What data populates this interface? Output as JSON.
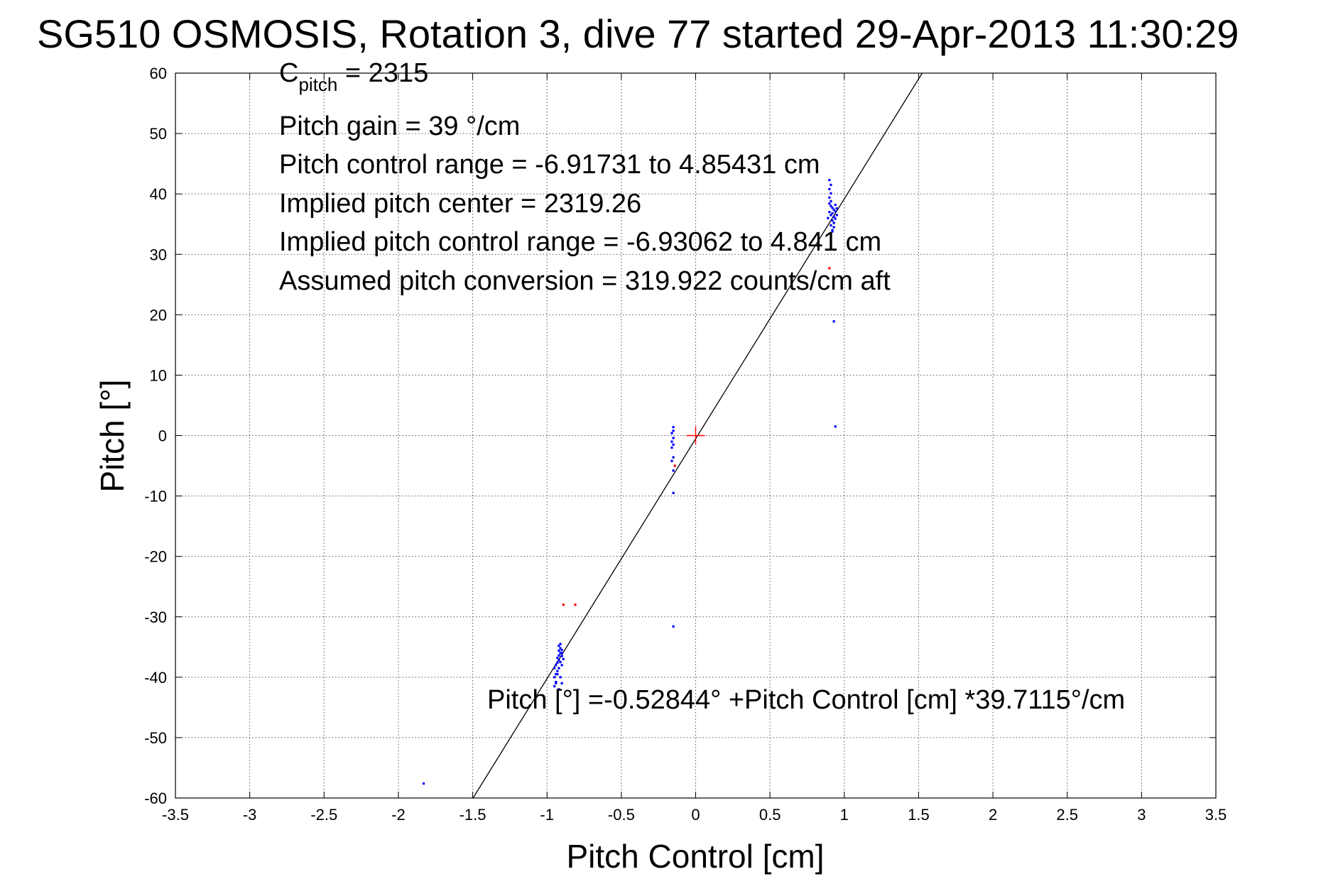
{
  "chart_data": {
    "type": "scatter",
    "title": "SG510 OSMOSIS, Rotation 3, dive 77 started 29-Apr-2013 11:30:29",
    "xlabel": "Pitch Control [cm]",
    "ylabel": "Pitch [°]",
    "xlim": [
      -3.5,
      3.5
    ],
    "ylim": [
      -60,
      60
    ],
    "xticks": [
      -3.5,
      -3,
      -2.5,
      -2,
      -1.5,
      -1,
      -0.5,
      0,
      0.5,
      1,
      1.5,
      2,
      2.5,
      3,
      3.5
    ],
    "xtick_labels": [
      "-3.5",
      "-3",
      "-2.5",
      "-2",
      "-1.5",
      "-1",
      "-0.5",
      "0",
      "0.5",
      "1",
      "1.5",
      "2",
      "2.5",
      "3",
      "3.5"
    ],
    "yticks": [
      -60,
      -50,
      -40,
      -30,
      -20,
      -10,
      0,
      10,
      20,
      30,
      40,
      50,
      60
    ],
    "ytick_labels": [
      "-60",
      "-50",
      "-40",
      "-30",
      "-20",
      "-10",
      "0",
      "10",
      "20",
      "30",
      "40",
      "50",
      "60"
    ],
    "grid": true,
    "fit_line": {
      "intercept": -0.52844,
      "slope": 39.7115,
      "color": "#000000"
    },
    "center_marker": {
      "x": 0,
      "y": 0,
      "color": "#ff0000"
    },
    "series": [
      {
        "color": "#0000ff",
        "points": [
          [
            -1.83,
            -57.6
          ],
          [
            -0.95,
            -41.5
          ],
          [
            -0.94,
            -40.8
          ],
          [
            -0.95,
            -40.0
          ],
          [
            -0.94,
            -39.5
          ],
          [
            -0.93,
            -39.0
          ],
          [
            -0.95,
            -38.5
          ],
          [
            -0.94,
            -38.0
          ],
          [
            -0.93,
            -37.6
          ],
          [
            -0.92,
            -37.2
          ],
          [
            -0.93,
            -36.8
          ],
          [
            -0.92,
            -36.4
          ],
          [
            -0.91,
            -36.0
          ],
          [
            -0.92,
            -35.6
          ],
          [
            -0.91,
            -35.2
          ],
          [
            -0.92,
            -34.8
          ],
          [
            -0.9,
            -35.5
          ],
          [
            -0.9,
            -36.5
          ],
          [
            -0.91,
            -37.5
          ],
          [
            -0.92,
            -38.5
          ],
          [
            -0.93,
            -39.5
          ],
          [
            -0.94,
            -41.0
          ],
          [
            -0.92,
            -42.0
          ],
          [
            -0.9,
            -41.0
          ],
          [
            -0.91,
            -40.0
          ],
          [
            -0.9,
            -38.0
          ],
          [
            -0.89,
            -37.0
          ],
          [
            -0.9,
            -36.0
          ],
          [
            -0.91,
            -34.5
          ],
          [
            -0.15,
            -31.6
          ],
          [
            -0.15,
            -9.5
          ],
          [
            -0.15,
            -5.8
          ],
          [
            -0.16,
            -4.2
          ],
          [
            -0.15,
            -3.6
          ],
          [
            -0.16,
            -2.0
          ],
          [
            -0.15,
            -1.5
          ],
          [
            -0.16,
            -1.0
          ],
          [
            -0.15,
            -0.4
          ],
          [
            -0.16,
            0.4
          ],
          [
            -0.15,
            0.8
          ],
          [
            -0.15,
            1.4
          ],
          [
            0.94,
            1.5
          ],
          [
            0.93,
            18.9
          ],
          [
            0.92,
            34.0
          ],
          [
            0.91,
            34.8
          ],
          [
            0.93,
            35.2
          ],
          [
            0.92,
            35.6
          ],
          [
            0.94,
            35.9
          ],
          [
            0.93,
            36.2
          ],
          [
            0.91,
            36.5
          ],
          [
            0.92,
            36.8
          ],
          [
            0.94,
            37.1
          ],
          [
            0.93,
            37.4
          ],
          [
            0.92,
            37.7
          ],
          [
            0.91,
            38.0
          ],
          [
            0.9,
            38.4
          ],
          [
            0.91,
            38.8
          ],
          [
            0.9,
            39.4
          ],
          [
            0.91,
            40.1
          ],
          [
            0.9,
            40.8
          ],
          [
            0.91,
            41.5
          ],
          [
            0.9,
            42.3
          ],
          [
            0.95,
            36.5
          ],
          [
            0.95,
            37.6
          ],
          [
            0.94,
            38.2
          ],
          [
            0.89,
            36.0
          ],
          [
            0.9,
            37.0
          ],
          [
            0.93,
            34.5
          ],
          [
            0.92,
            33.8
          ]
        ]
      },
      {
        "color": "#ff0000",
        "points": [
          [
            -0.89,
            -28.0
          ],
          [
            -0.81,
            -28.0
          ],
          [
            -0.14,
            -5.0
          ],
          [
            0.9,
            27.7
          ]
        ]
      }
    ],
    "annotations": [
      {
        "kind": "c_pitch",
        "main": "C",
        "sub": "pitch",
        "rest": " = 2315"
      },
      {
        "kind": "text",
        "text": "Pitch gain = 39 °/cm"
      },
      {
        "kind": "text",
        "text": "Pitch control range = -6.91731 to 4.85431 cm"
      },
      {
        "kind": "text",
        "text": "Implied pitch center = 2319.26"
      },
      {
        "kind": "text",
        "text": "Implied pitch control range = -6.93062 to 4.841 cm"
      },
      {
        "kind": "text",
        "text": "Assumed pitch conversion = 319.922 counts/cm aft"
      },
      {
        "kind": "text",
        "text": "Pitch [°] =-0.52844° +Pitch Control [cm] *39.7115°/cm"
      }
    ]
  }
}
